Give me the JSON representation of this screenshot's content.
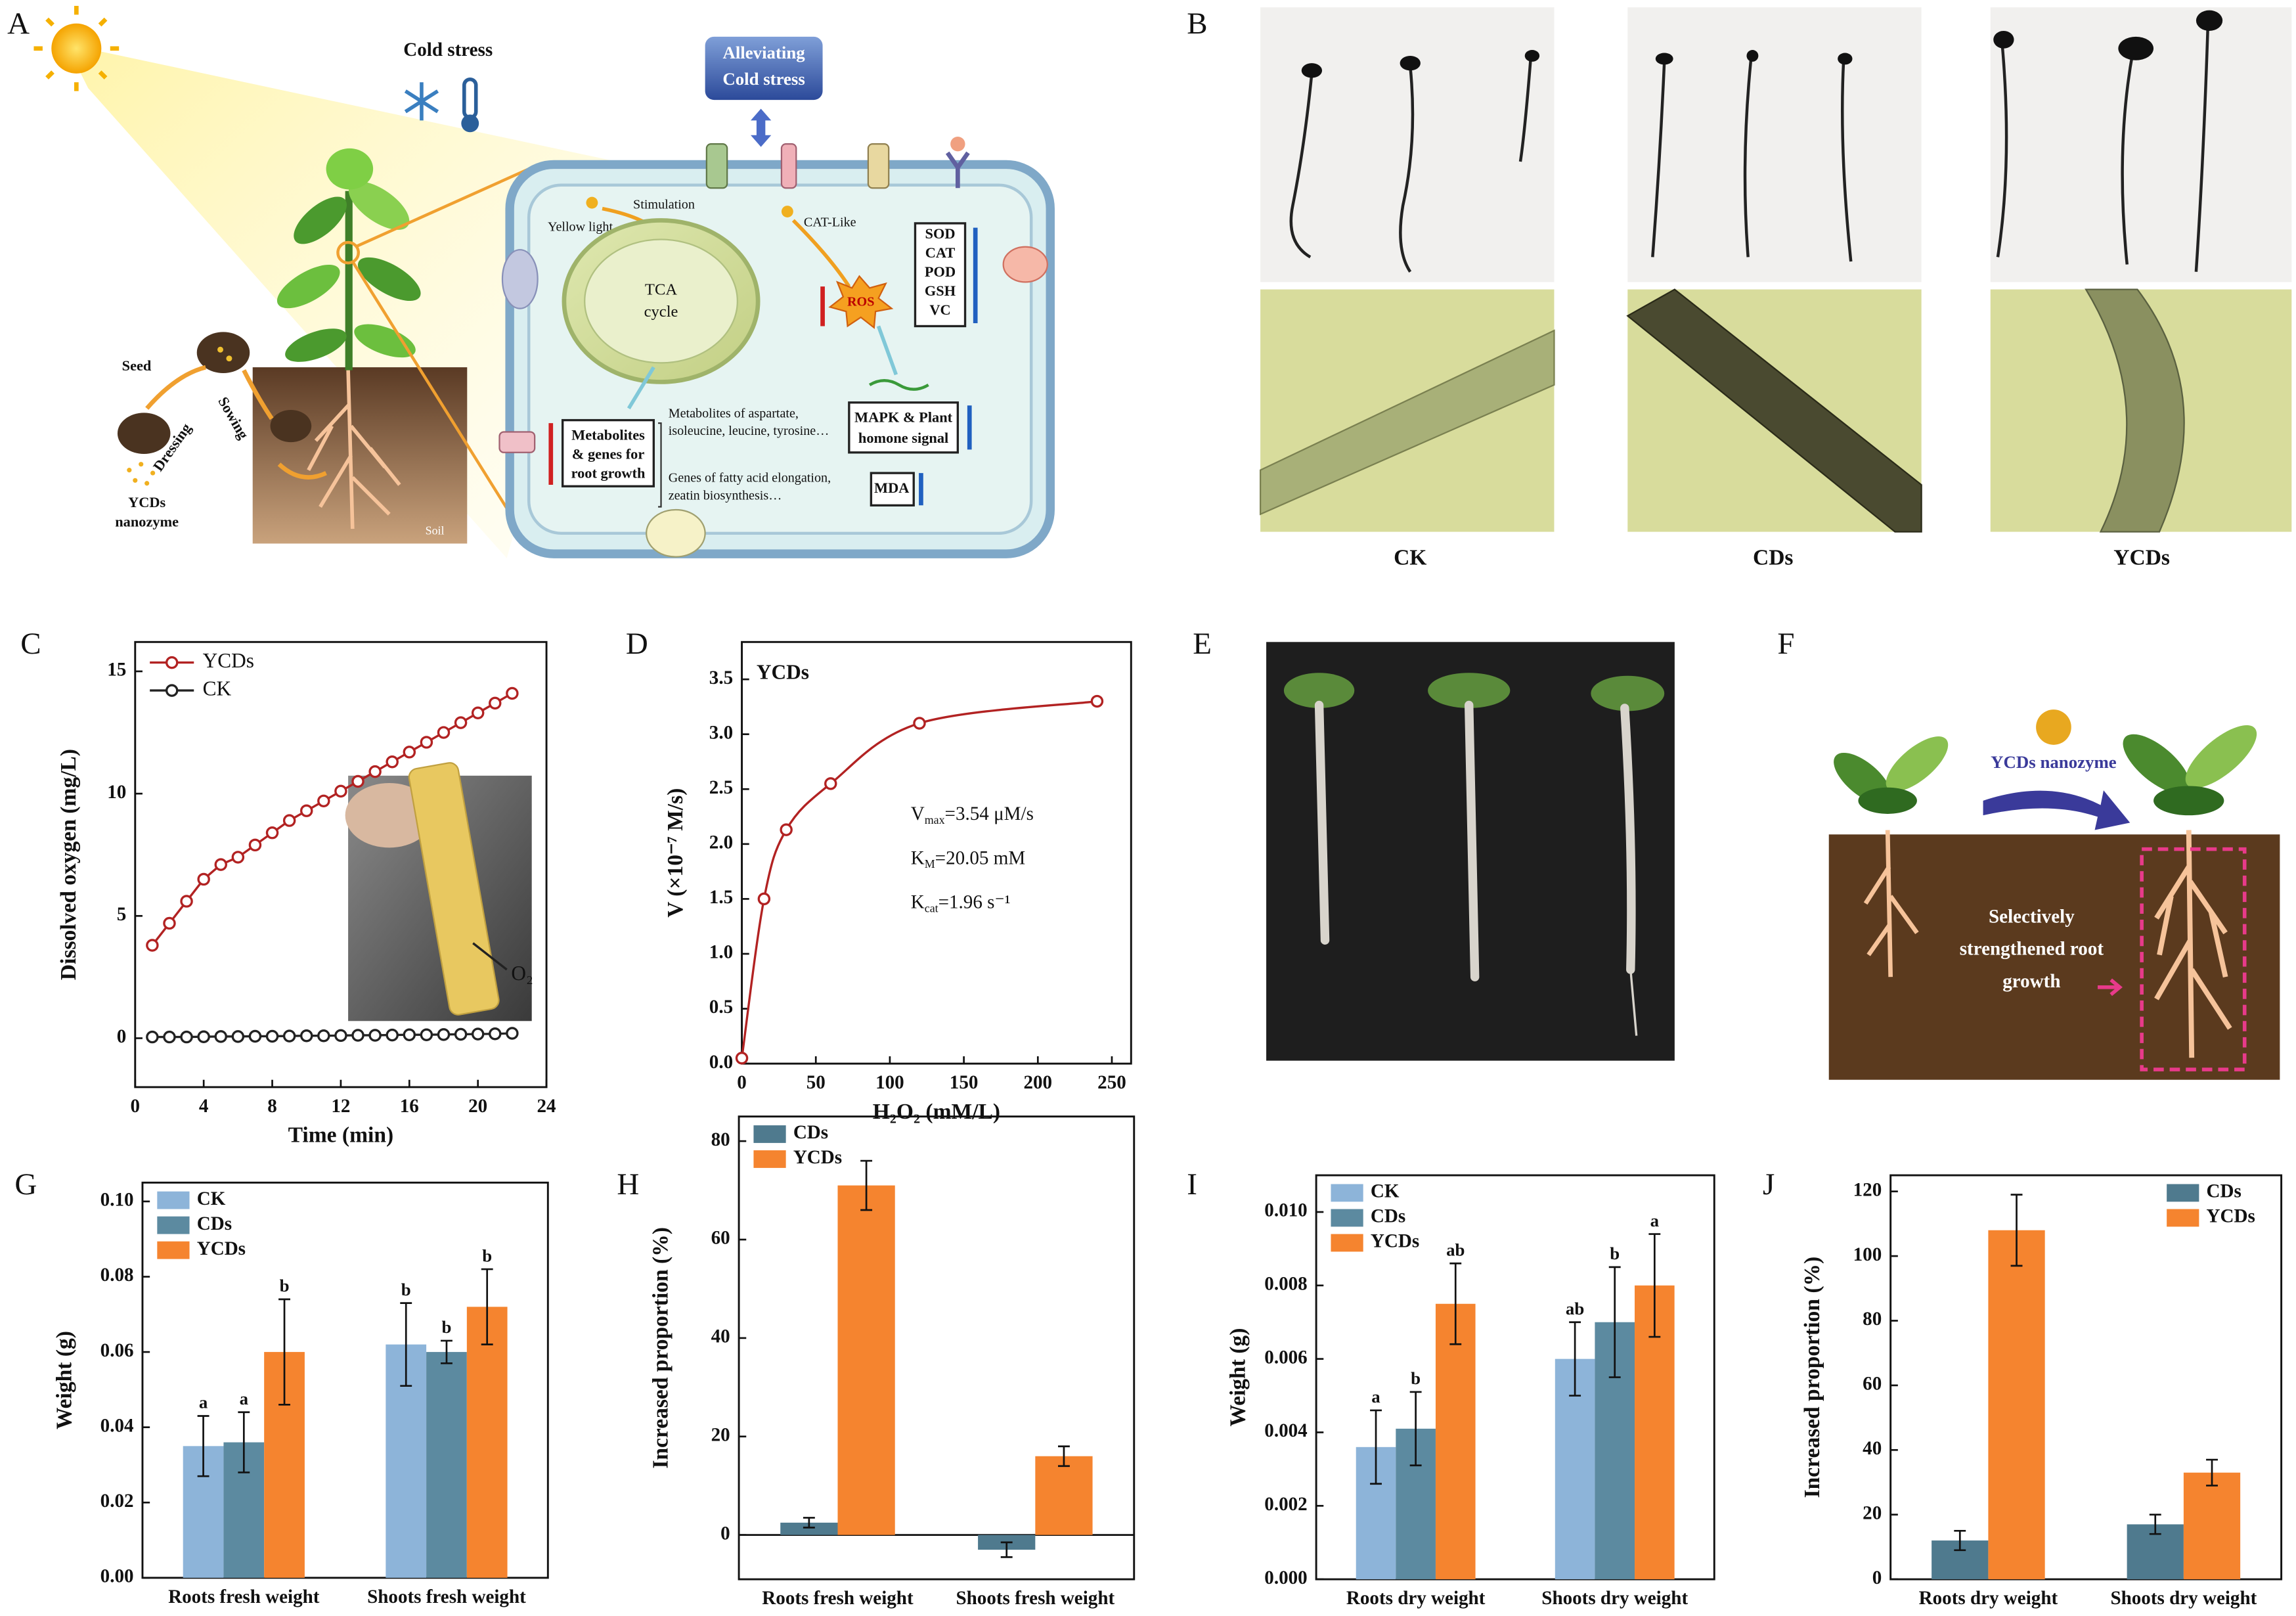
{
  "panels": {
    "A": {
      "label": "A",
      "cold_stress": "Cold stress",
      "alleviating": [
        "Alleviating",
        "Cold stress"
      ],
      "stimulation": "Stimulation",
      "yellow_light": "Yellow light",
      "cat_like": "CAT-Like",
      "tca": [
        "TCA",
        "cycle"
      ],
      "antioxidants": [
        "SOD",
        "CAT",
        "POD",
        "GSH",
        "VC"
      ],
      "ros": "ROS",
      "mapk": [
        "MAPK & Plant",
        "homone signal"
      ],
      "metabolites_box": [
        "Metabolites",
        "& genes for",
        "root growth"
      ],
      "metabolites_text": [
        "Metabolites of aspartate,",
        "isoleucine, leucine, tyrosine…"
      ],
      "genes_text": [
        "Genes of fatty acid elongation,",
        "zeatin biosynthesis…"
      ],
      "mda": "MDA",
      "seed": "Seed",
      "dressing": "Dressing",
      "sowing": "Sowing",
      "nanozyme": [
        "YCDs",
        "nanozyme"
      ],
      "soil": "Soil"
    },
    "B": {
      "label": "B",
      "groups": [
        "CK",
        "CDs",
        "YCDs"
      ]
    },
    "E": {
      "label": "E"
    },
    "F": {
      "label": "F",
      "arrow_label": "YCDs nanozyme",
      "note": [
        "Selectively",
        "strengthened root",
        "growth"
      ]
    }
  },
  "chart_data": [
    {
      "type": "line",
      "label": "C",
      "xlabel": "Time (min)",
      "ylabel": "Dissolved oxygen (mg/L)",
      "annotation": "O₂",
      "x": [
        1,
        2,
        3,
        4,
        5,
        6,
        7,
        8,
        9,
        10,
        11,
        12,
        13,
        14,
        15,
        16,
        17,
        18,
        19,
        20,
        21,
        22
      ],
      "series": [
        {
          "name": "YCDs",
          "color": "#b22222",
          "values": [
            3.8,
            4.7,
            5.6,
            6.5,
            7.1,
            7.4,
            7.9,
            8.4,
            8.9,
            9.3,
            9.7,
            10.1,
            10.5,
            10.9,
            11.3,
            11.7,
            12.1,
            12.5,
            12.9,
            13.3,
            13.7,
            14.1
          ]
        },
        {
          "name": "CK",
          "color": "#222222",
          "values": [
            0.05,
            0.05,
            0.05,
            0.06,
            0.07,
            0.07,
            0.08,
            0.08,
            0.09,
            0.1,
            0.1,
            0.11,
            0.12,
            0.12,
            0.13,
            0.14,
            0.14,
            0.15,
            0.16,
            0.17,
            0.18,
            0.2
          ]
        }
      ],
      "xlim": [
        0,
        24
      ],
      "xticks": [
        0,
        4,
        8,
        12,
        16,
        20,
        24
      ],
      "ylim": [
        -2,
        16.2
      ],
      "yticks": [
        0,
        5,
        10,
        15
      ],
      "legend": "upper left"
    },
    {
      "type": "line",
      "label": "D",
      "xlabel": "H₂O₂ (mM/L)",
      "ylabel": "V (×10⁻⁷ M/s)",
      "smooth": true,
      "x": [
        0,
        15,
        30,
        60,
        120,
        240
      ],
      "series": [
        {
          "name": "YCDs",
          "color": "#b22222",
          "values": [
            0.05,
            1.5,
            2.13,
            2.55,
            3.1,
            3.3
          ]
        }
      ],
      "annotations": [
        {
          "symbol": "V",
          "sub": "max",
          "text": "=3.54 μM/s"
        },
        {
          "symbol": "K",
          "sub": "M",
          "text": "=20.05 mM"
        },
        {
          "symbol": "K",
          "sub": "cat",
          "text": "=1.96 s⁻¹"
        }
      ],
      "xlim": [
        0,
        263
      ],
      "xticks": [
        0,
        50,
        100,
        150,
        200,
        250
      ],
      "ylim": [
        0,
        3.84
      ],
      "yticks": [
        {
          "value": 0,
          "label": "0.0"
        },
        0.5,
        {
          "value": 1,
          "label": "1.0"
        },
        1.5,
        {
          "value": 2,
          "label": "2.0"
        },
        2.5,
        {
          "value": 3,
          "label": "3.0"
        },
        3.5
      ],
      "legend": "upper left"
    },
    {
      "type": "bar",
      "label": "G",
      "ylabel": "Weight (g)",
      "categories": [
        "Roots fresh weight",
        "Shoots fresh weight"
      ],
      "series": [
        {
          "name": "CK",
          "color": "#8db4d9",
          "values": [
            0.035,
            0.062
          ],
          "errors": [
            0.008,
            0.011
          ],
          "letters": [
            "a",
            "b"
          ]
        },
        {
          "name": "CDs",
          "color": "#5c8aa0",
          "values": [
            0.036,
            0.06
          ],
          "errors": [
            0.008,
            0.003
          ],
          "letters": [
            "a",
            "b"
          ]
        },
        {
          "name": "YCDs",
          "color": "#f5842f",
          "values": [
            0.06,
            0.072
          ],
          "errors": [
            0.014,
            0.01
          ],
          "letters": [
            "b",
            "b"
          ]
        }
      ],
      "ylim": [
        0,
        0.105
      ],
      "yticks": [
        {
          "value": 0,
          "label": "0.00"
        },
        0.02,
        0.04,
        0.06,
        0.08,
        {
          "value": 0.1,
          "label": "0.10"
        }
      ],
      "legend": "upper left"
    },
    {
      "type": "bar",
      "label": "H",
      "ylabel": "Increased proportion (%)",
      "categories": [
        "Roots fresh weight",
        "Shoots fresh weight"
      ],
      "series": [
        {
          "name": "CDs",
          "color": "#4f7a8e",
          "values": [
            2.5,
            -3
          ],
          "errors": [
            1,
            1.5
          ]
        },
        {
          "name": "YCDs",
          "color": "#f5842f",
          "values": [
            71,
            16
          ],
          "errors": [
            5,
            2
          ]
        }
      ],
      "ylim": [
        -9,
        85
      ],
      "yticks": [
        0,
        20,
        40,
        60,
        80
      ],
      "legend": "upper left"
    },
    {
      "type": "bar",
      "label": "I",
      "ylabel": "Weight (g)",
      "categories": [
        "Roots dry weight",
        "Shoots dry weight"
      ],
      "series": [
        {
          "name": "CK",
          "color": "#8db4d9",
          "values": [
            0.0036,
            0.006
          ],
          "errors": [
            0.001,
            0.001
          ],
          "letters": [
            "a",
            "ab"
          ]
        },
        {
          "name": "CDs",
          "color": "#5c8aa0",
          "values": [
            0.0041,
            0.007
          ],
          "errors": [
            0.001,
            0.0015
          ],
          "letters": [
            "b",
            "b"
          ]
        },
        {
          "name": "YCDs",
          "color": "#f5842f",
          "values": [
            0.0075,
            0.008
          ],
          "errors": [
            0.0011,
            0.0014
          ],
          "letters": [
            "ab",
            "a"
          ]
        }
      ],
      "ylim": [
        0,
        0.011
      ],
      "yticks": [
        {
          "value": 0,
          "label": "0.000"
        },
        0.002,
        0.004,
        0.006,
        0.008,
        {
          "value": 0.01,
          "label": "0.010"
        }
      ],
      "legend": "upper left"
    },
    {
      "type": "bar",
      "label": "J",
      "ylabel": "Increased proportion (%)",
      "categories": [
        "Roots dry weight",
        "Shoots dry weight"
      ],
      "series": [
        {
          "name": "CDs",
          "color": "#4f7a8e",
          "values": [
            12,
            17
          ],
          "errors": [
            3,
            3
          ]
        },
        {
          "name": "YCDs",
          "color": "#f5842f",
          "values": [
            108,
            33
          ],
          "errors": [
            11,
            4
          ]
        }
      ],
      "ylim": [
        0,
        125
      ],
      "yticks": [
        0,
        20,
        40,
        60,
        80,
        100,
        120
      ],
      "legend": "upper right"
    }
  ]
}
